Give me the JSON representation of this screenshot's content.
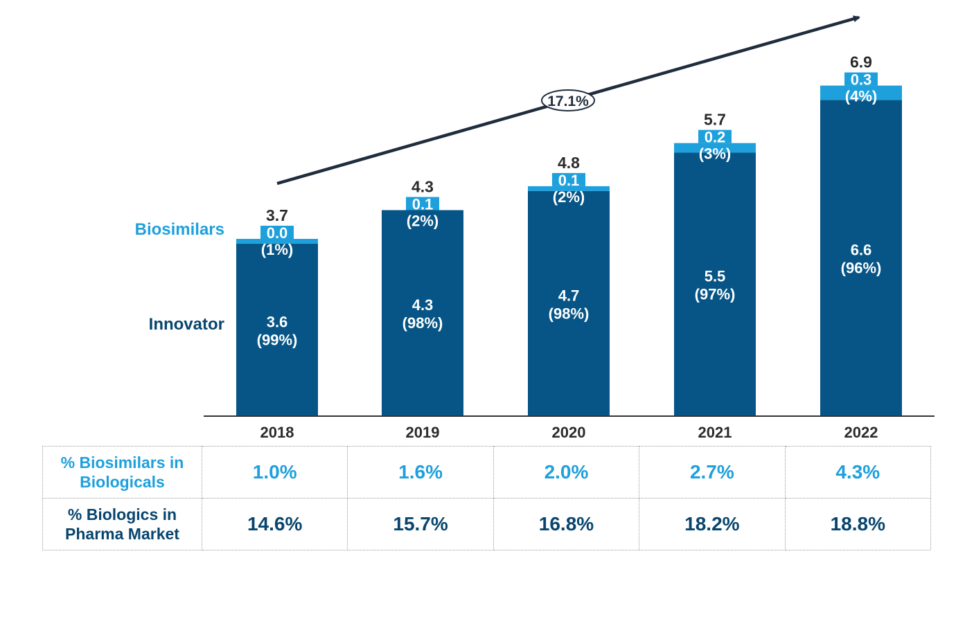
{
  "chart_data": {
    "type": "bar",
    "stacked": true,
    "categories": [
      "2018",
      "2019",
      "2020",
      "2021",
      "2022"
    ],
    "series": [
      {
        "name": "Innovator",
        "values": [
          3.6,
          4.3,
          4.7,
          5.5,
          6.6
        ],
        "labels": [
          "3.6",
          "4.3",
          "4.7",
          "5.5",
          "6.6"
        ],
        "share_labels": [
          "(99%)",
          "(98%)",
          "(98%)",
          "(97%)",
          "(96%)"
        ]
      },
      {
        "name": "Biosimilars",
        "values": [
          0.04,
          0.07,
          0.1,
          0.15,
          0.3
        ],
        "labels": [
          "0.0",
          "0.1",
          "0.1",
          "0.2",
          "0.3"
        ],
        "share_labels": [
          "(1%)",
          "(2%)",
          "(2%)",
          "(3%)",
          "(4%)"
        ]
      }
    ],
    "totals": [
      "3.7",
      "4.3",
      "4.8",
      "5.7",
      "6.9"
    ],
    "total_values": [
      3.7,
      4.3,
      4.8,
      5.7,
      6.9
    ],
    "cagr_label": "17.1%",
    "ylim": [
      0,
      7.4
    ],
    "grid": false,
    "legend": "left",
    "colors": {
      "innovator": "#065586",
      "biosimilars": "#1ea0dc",
      "trend_arrow": "#1f2d3d",
      "axis": "#333333"
    }
  },
  "table": {
    "rows": [
      {
        "label": "% Biosimilars in Biologicals",
        "values": [
          "1.0%",
          "1.6%",
          "2.0%",
          "2.7%",
          "4.3%"
        ]
      },
      {
        "label": "% Biologics in Pharma Market",
        "values": [
          "14.6%",
          "15.7%",
          "16.8%",
          "18.2%",
          "18.8%"
        ]
      }
    ]
  }
}
